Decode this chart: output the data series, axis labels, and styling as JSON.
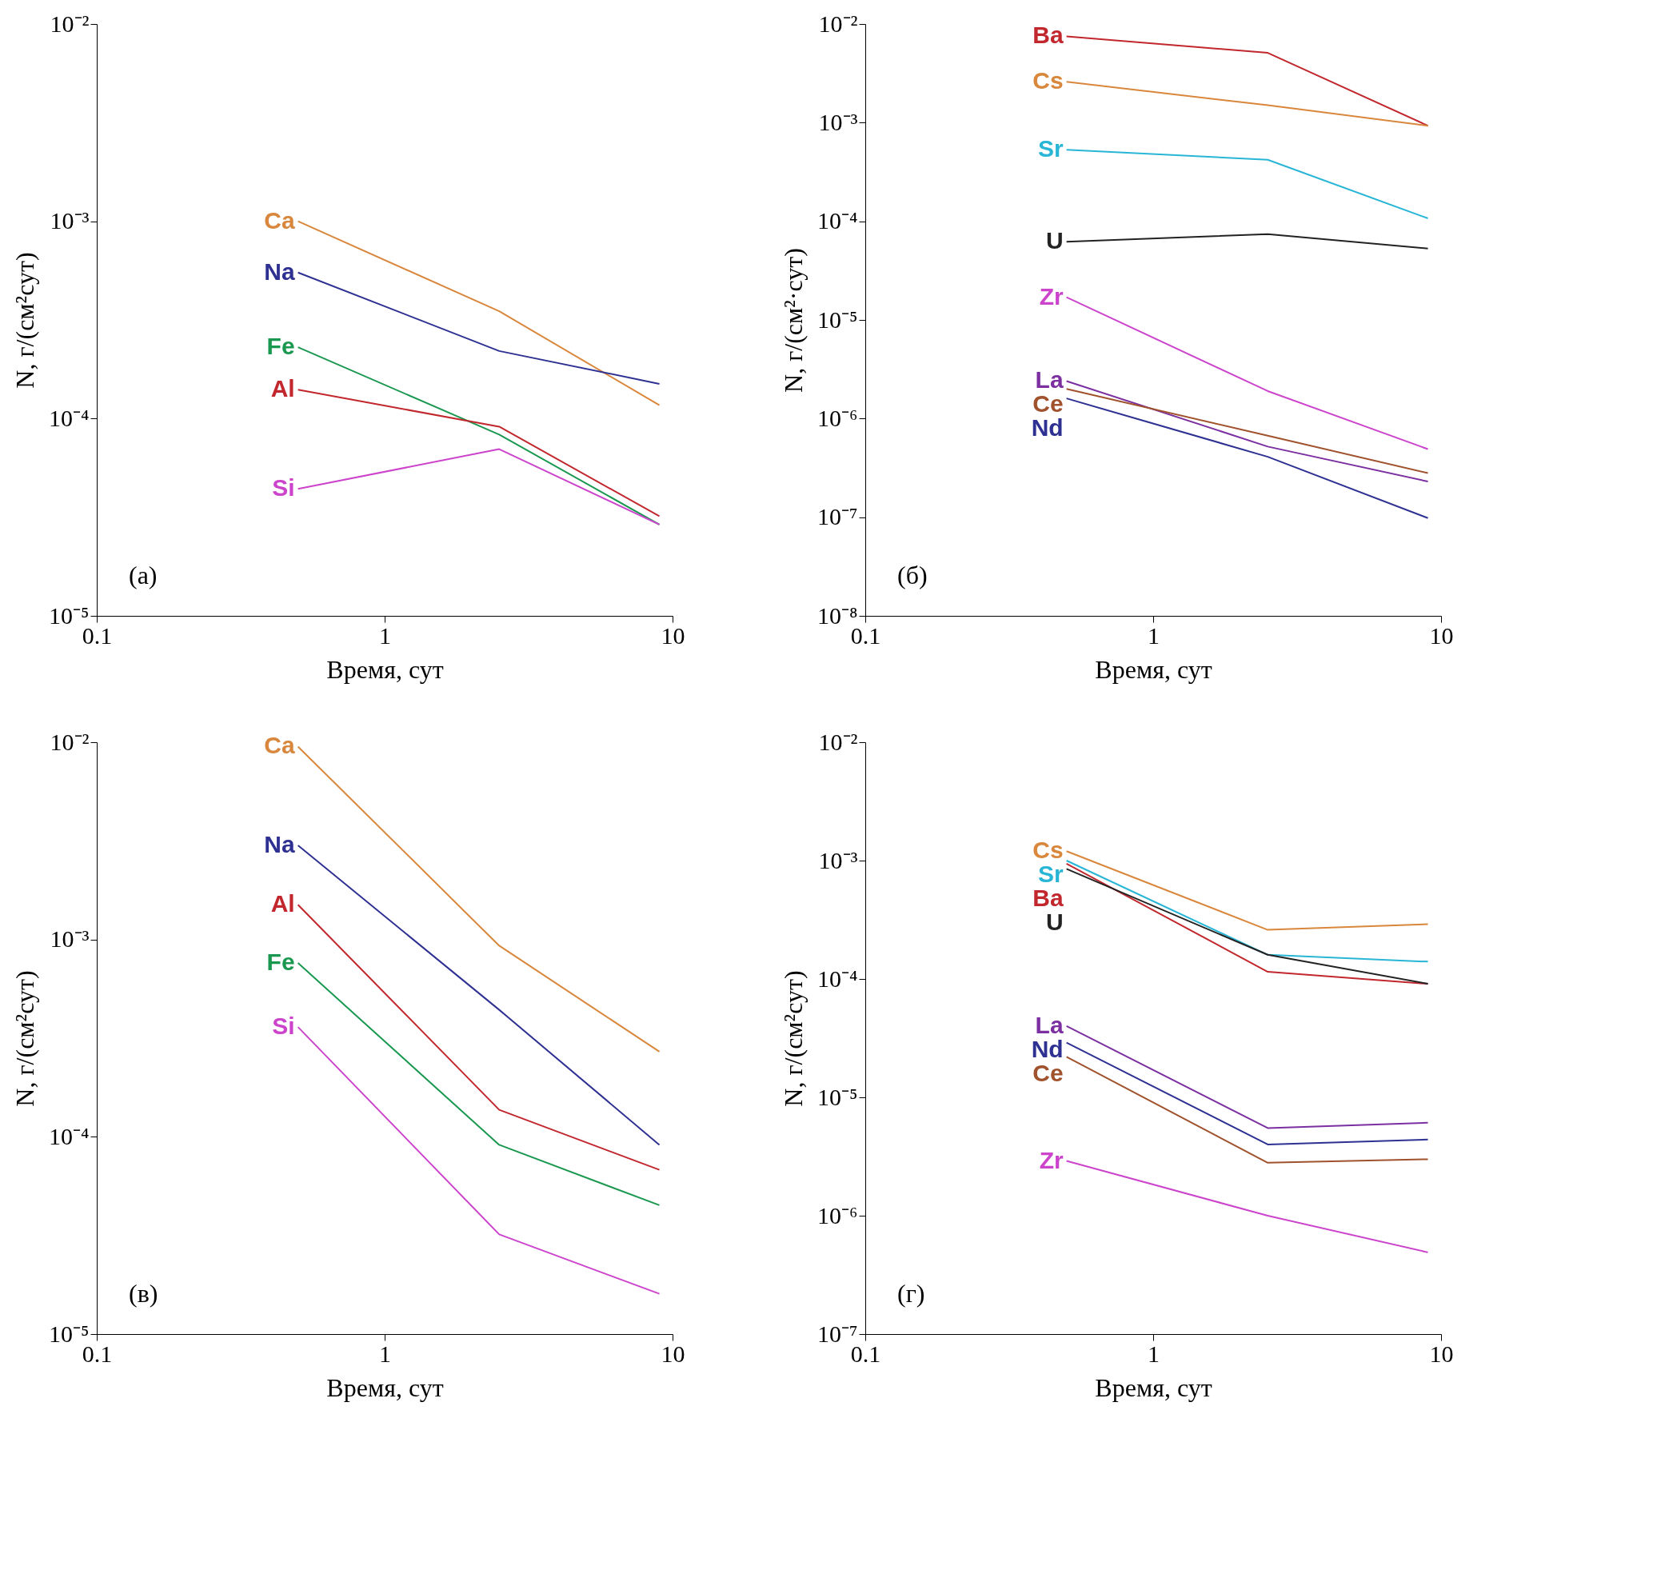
{
  "chart_data": [
    {
      "type": "line",
      "xlabel": "Время, сут",
      "ylabel": "N, г/(см²сут)",
      "annotations": [
        "(а)"
      ],
      "log": "xy",
      "grid": false,
      "legend": false,
      "marker": "none",
      "line_style": "solid",
      "x": [
        0.5,
        2.5,
        9
      ],
      "xlim": [
        0.1,
        10
      ],
      "xticks": [
        0.1,
        1,
        10
      ],
      "ylim": [
        1e-05,
        0.01
      ],
      "yticks": [
        {
          "value": 1e-05,
          "label": "10⁻⁵"
        },
        {
          "value": 0.0001,
          "label": "10⁻⁴"
        },
        {
          "value": 0.001,
          "label": "10⁻³"
        },
        {
          "value": 0.01,
          "label": "10⁻²"
        }
      ],
      "series": [
        {
          "name": "Ca",
          "color": "#d9873c",
          "values": [
            0.001,
            0.00035,
            0.000117
          ]
        },
        {
          "name": "Na",
          "color": "#2e3192",
          "values": [
            0.00055,
            0.00022,
            0.00015
          ]
        },
        {
          "name": "Fe",
          "color": "#1a9850",
          "values": [
            0.00023,
            8.3e-05,
            2.9e-05
          ]
        },
        {
          "name": "Al",
          "color": "#c1272d",
          "values": [
            0.00014,
            9.1e-05,
            3.2e-05
          ]
        },
        {
          "name": "Si",
          "color": "#cc44cc",
          "values": [
            4.4e-05,
            7e-05,
            2.9e-05
          ]
        }
      ]
    },
    {
      "type": "line",
      "xlabel": "Время, сут",
      "ylabel": "N, г/(см²·сут)",
      "annotations": [
        "(б)"
      ],
      "log": "xy",
      "grid": false,
      "legend": false,
      "marker": "none",
      "line_style": "solid",
      "x": [
        0.5,
        2.5,
        9
      ],
      "xlim": [
        0.1,
        10
      ],
      "xticks": [
        0.1,
        1,
        10
      ],
      "ylim": [
        1e-08,
        0.01
      ],
      "yticks": [
        {
          "value": 1e-08,
          "label": "10⁻⁸"
        },
        {
          "value": 1e-07,
          "label": "10⁻⁷"
        },
        {
          "value": 1e-06,
          "label": "10⁻⁶"
        },
        {
          "value": 1e-05,
          "label": "10⁻⁵"
        },
        {
          "value": 0.0001,
          "label": "10⁻⁴"
        },
        {
          "value": 0.001,
          "label": "10⁻³"
        },
        {
          "value": 0.01,
          "label": "10⁻²"
        }
      ],
      "series": [
        {
          "name": "Ba",
          "color": "#c1272d",
          "values": [
            0.0075,
            0.0051,
            0.00093
          ]
        },
        {
          "name": "Cs",
          "color": "#d9873c",
          "values": [
            0.0026,
            0.0015,
            0.00093
          ]
        },
        {
          "name": "Sr",
          "color": "#29b6d6",
          "values": [
            0.00053,
            0.00042,
            0.000107
          ]
        },
        {
          "name": "U",
          "color": "#222222",
          "values": [
            6.2e-05,
            7.4e-05,
            5.3e-05
          ]
        },
        {
          "name": "Zr",
          "color": "#cc44cc",
          "values": [
            1.7e-05,
            1.9e-06,
            4.9e-07
          ]
        },
        {
          "name": "La",
          "color": "#7b2fa0",
          "values": [
            2.4e-06,
            5.2e-07,
            2.3e-07
          ]
        },
        {
          "name": "Ce",
          "color": "#a0522d",
          "values": [
            2e-06,
            6.7e-07,
            2.8e-07
          ]
        },
        {
          "name": "Nd",
          "color": "#2e3192",
          "values": [
            1.6e-06,
            4.1e-07,
            9.8e-08
          ]
        }
      ]
    },
    {
      "type": "line",
      "xlabel": "Время, сут",
      "ylabel": "N, г/(см²сут)",
      "annotations": [
        "(в)"
      ],
      "log": "xy",
      "grid": false,
      "legend": false,
      "marker": "none",
      "line_style": "solid",
      "x": [
        0.5,
        2.5,
        9
      ],
      "xlim": [
        0.1,
        10
      ],
      "xticks": [
        0.1,
        1,
        10
      ],
      "ylim": [
        1e-05,
        0.01
      ],
      "yticks": [
        {
          "value": 1e-05,
          "label": "10⁻⁵"
        },
        {
          "value": 0.0001,
          "label": "10⁻⁴"
        },
        {
          "value": 0.001,
          "label": "10⁻³"
        },
        {
          "value": 0.01,
          "label": "10⁻²"
        }
      ],
      "series": [
        {
          "name": "Ca",
          "color": "#d9873c",
          "values": [
            0.0095,
            0.00093,
            0.00027
          ]
        },
        {
          "name": "Na",
          "color": "#2e3192",
          "values": [
            0.003,
            0.00044,
            9.1e-05
          ]
        },
        {
          "name": "Al",
          "color": "#c1272d",
          "values": [
            0.0015,
            0.000137,
            6.8e-05
          ]
        },
        {
          "name": "Fe",
          "color": "#1a9850",
          "values": [
            0.00076,
            9.1e-05,
            4.5e-05
          ]
        },
        {
          "name": "Si",
          "color": "#cc44cc",
          "values": [
            0.00036,
            3.2e-05,
            1.6e-05
          ]
        }
      ]
    },
    {
      "type": "line",
      "xlabel": "Время, сут",
      "ylabel": "N, г/(см²сут)",
      "annotations": [
        "(г)"
      ],
      "log": "xy",
      "grid": false,
      "legend": false,
      "marker": "none",
      "line_style": "solid",
      "x": [
        0.5,
        2.5,
        9
      ],
      "xlim": [
        0.1,
        10
      ],
      "xticks": [
        0.1,
        1,
        10
      ],
      "ylim": [
        1e-07,
        0.01
      ],
      "yticks": [
        {
          "value": 1e-07,
          "label": "10⁻⁷"
        },
        {
          "value": 1e-06,
          "label": "10⁻⁶"
        },
        {
          "value": 1e-05,
          "label": "10⁻⁵"
        },
        {
          "value": 0.0001,
          "label": "10⁻⁴"
        },
        {
          "value": 0.001,
          "label": "10⁻³"
        },
        {
          "value": 0.01,
          "label": "10⁻²"
        }
      ],
      "series": [
        {
          "name": "Cs",
          "color": "#d9873c",
          "values": [
            0.0012,
            0.00026,
            0.00029
          ]
        },
        {
          "name": "Sr",
          "color": "#29b6d6",
          "values": [
            0.001,
            0.00016,
            0.00014
          ]
        },
        {
          "name": "Ba",
          "color": "#c1272d",
          "values": [
            0.00094,
            0.000115,
            9.1e-05
          ]
        },
        {
          "name": "U",
          "color": "#222222",
          "values": [
            0.00085,
            0.00016,
            9.1e-05
          ]
        },
        {
          "name": "La",
          "color": "#7b2fa0",
          "values": [
            4e-05,
            5.5e-06,
            6.1e-06
          ]
        },
        {
          "name": "Nd",
          "color": "#2e3192",
          "values": [
            2.9e-05,
            4e-06,
            4.4e-06
          ]
        },
        {
          "name": "Ce",
          "color": "#a0522d",
          "values": [
            2.2e-05,
            2.8e-06,
            3e-06
          ]
        },
        {
          "name": "Zr",
          "color": "#cc44cc",
          "values": [
            2.9e-06,
            1e-06,
            4.9e-07
          ]
        }
      ]
    }
  ]
}
